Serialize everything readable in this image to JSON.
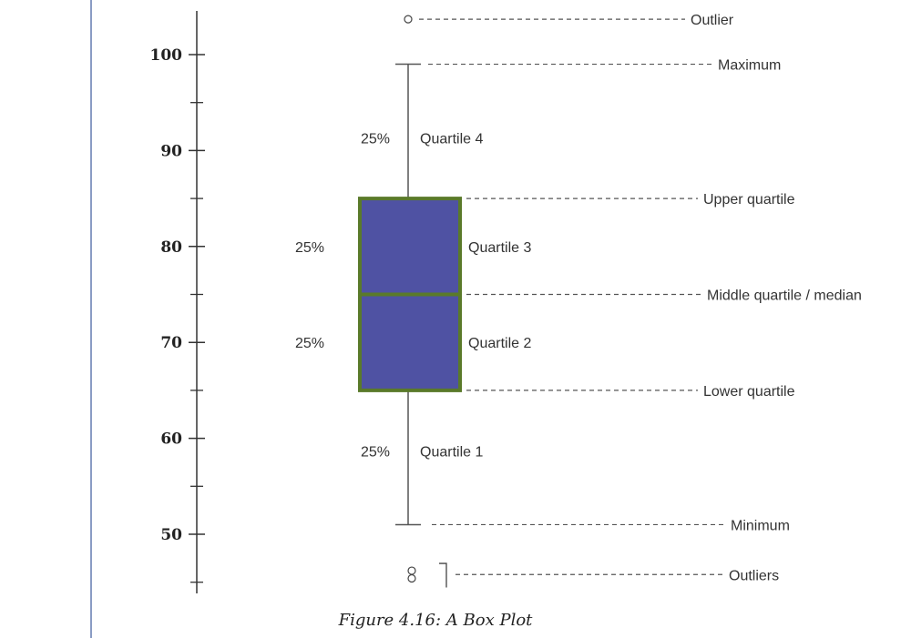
{
  "chart_data": {
    "type": "box",
    "ylim": [
      44,
      104
    ],
    "yticks": [
      100,
      90,
      80,
      70,
      60,
      50
    ],
    "minor_ticks": [
      95,
      85,
      75,
      65,
      55,
      45
    ],
    "box": {
      "minimum": 51,
      "lower_quartile": 65,
      "median": 75,
      "upper_quartile": 85,
      "maximum": 99,
      "outliers_high": [
        103.5
      ],
      "outliers_low": [
        46.2,
        45.4
      ]
    },
    "colors": {
      "box_fill": "#4f52a3",
      "box_edge": "#5a7a2a",
      "whisker": "#555555"
    },
    "annotations": [
      {
        "label": "Outlier",
        "value": 103.5
      },
      {
        "label": "Maximum",
        "value": 99
      },
      {
        "label": "Upper quartile",
        "value": 85
      },
      {
        "label": "Middle quartile / median",
        "value": 75
      },
      {
        "label": "Lower quartile",
        "value": 65
      },
      {
        "label": "Minimum",
        "value": 51
      },
      {
        "label": "Outliers",
        "value": 45.8
      }
    ],
    "segments": [
      {
        "percent": "25%",
        "label": "Quartile 4",
        "value": 91.3
      },
      {
        "percent": "25%",
        "label": "Quartile 3",
        "value": 80
      },
      {
        "percent": "25%",
        "label": "Quartile  2",
        "value": 70
      },
      {
        "percent": "25%",
        "label": "Quartile 1",
        "value": 58.7
      }
    ]
  },
  "caption": "Figure 4.16: A Box Plot"
}
